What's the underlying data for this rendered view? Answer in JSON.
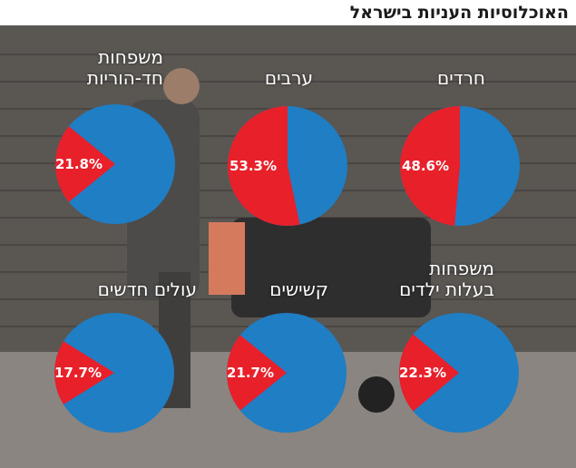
{
  "header": {
    "title": "האוכלוסיות העניות בישראל"
  },
  "colors": {
    "poor": "#e8202a",
    "rest": "#1f7ec4",
    "background": "#6f6a66"
  },
  "chart_data": [
    {
      "type": "pie",
      "title_lines": [
        "חרדים"
      ],
      "values": [
        48.6,
        51.4
      ],
      "value_label": "48.6%"
    },
    {
      "type": "pie",
      "title_lines": [
        "ערבים"
      ],
      "values": [
        53.3,
        46.7
      ],
      "value_label": "53.3%"
    },
    {
      "type": "pie",
      "title_lines": [
        "משפחות",
        "חד-הוריות"
      ],
      "values": [
        21.8,
        78.2
      ],
      "value_label": "21.8%"
    },
    {
      "type": "pie",
      "title_lines": [
        "משפחות",
        "בעלות ילדים"
      ],
      "values": [
        22.3,
        77.7
      ],
      "value_label": "22.3%"
    },
    {
      "type": "pie",
      "title_lines": [
        "קשישים"
      ],
      "values": [
        21.7,
        78.3
      ],
      "value_label": "21.7%"
    },
    {
      "type": "pie",
      "title_lines": [
        "עולים חדשים"
      ],
      "values": [
        17.7,
        82.3
      ],
      "value_label": "17.7%"
    }
  ]
}
